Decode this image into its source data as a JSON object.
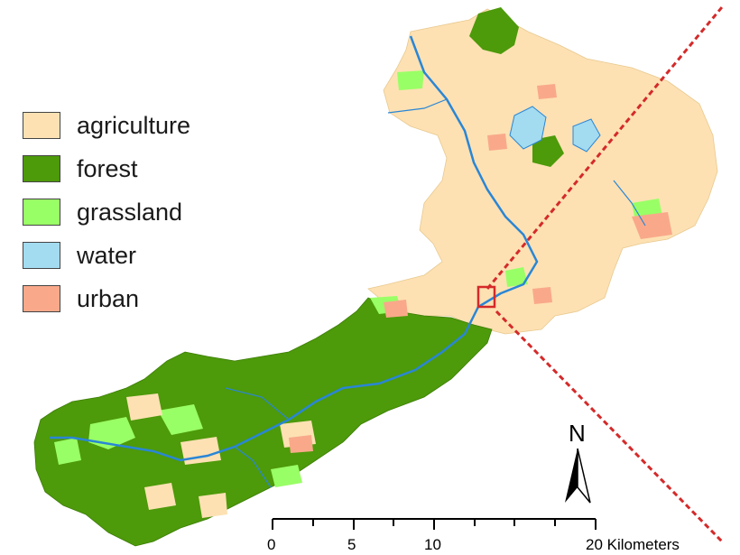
{
  "legend": {
    "items": [
      {
        "label": "agriculture",
        "color": "#fde1b3"
      },
      {
        "label": "forest",
        "color": "#4d9a0a"
      },
      {
        "label": "grassland",
        "color": "#99ff66"
      },
      {
        "label": "water",
        "color": "#a3dbf0"
      },
      {
        "label": "urban",
        "color": "#f9a98a"
      }
    ]
  },
  "north_arrow": {
    "label": "N"
  },
  "scale_bar": {
    "labels": [
      "0",
      "5",
      "10",
      "20 Kilometers"
    ]
  },
  "colors": {
    "agriculture": "#fde1b3",
    "forest": "#4d9a0a",
    "grassland": "#99ff66",
    "water": "#a3dbf0",
    "river": "#2a86d6",
    "urban": "#f9a98a",
    "dashed_line": "#d42a2a",
    "highlight_box": "#d42a2a"
  }
}
